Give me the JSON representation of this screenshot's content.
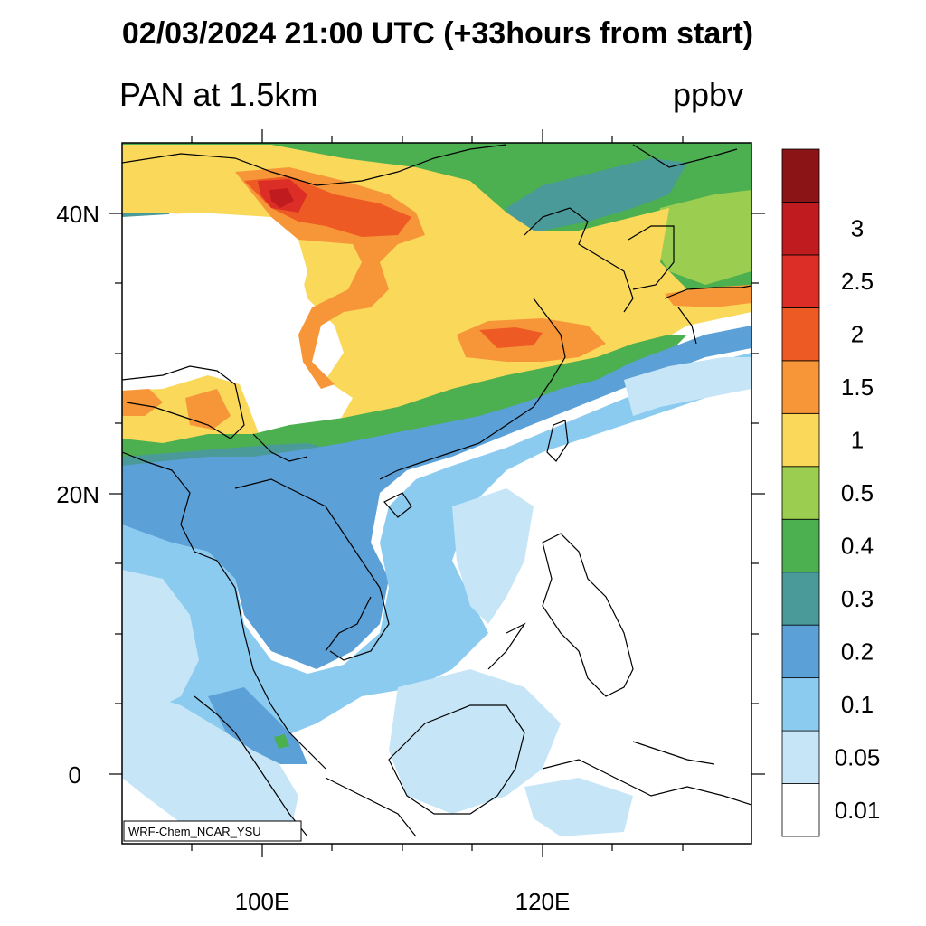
{
  "title": "02/03/2024 21:00 UTC (+33hours from start)",
  "subtitle_left": "PAN at 1.5km",
  "subtitle_right": "ppbv",
  "credit": "WRF-Chem_NCAR_YSU",
  "lat_labels": [
    "40N",
    "20N",
    "0"
  ],
  "lon_labels": [
    "100E",
    "120E"
  ],
  "colorbar": {
    "colors": [
      "#ffffff",
      "#c6e6f8",
      "#8ccbf0",
      "#5ba0d7",
      "#4a9a9a",
      "#4caf50",
      "#9acd50",
      "#f9d85a",
      "#f79638",
      "#ee5a24",
      "#dc2e26",
      "#c01c20",
      "#8b1417"
    ],
    "labels": [
      "0.01",
      "0.05",
      "0.1",
      "0.2",
      "0.3",
      "0.4",
      "0.5",
      "1",
      "1.5",
      "2",
      "2.5",
      "3"
    ]
  },
  "colors": {
    "white": "#ffffff",
    "c001": "#c6e6f8",
    "c005": "#8ccbf0",
    "c01": "#5ba0d7",
    "c02": "#4a9a9a",
    "c03": "#4caf50",
    "c04": "#9acd50",
    "c05": "#f9d85a",
    "c1": "#f79638",
    "c15": "#ee5a24",
    "c2": "#dc2e26",
    "c25": "#c01c20"
  }
}
